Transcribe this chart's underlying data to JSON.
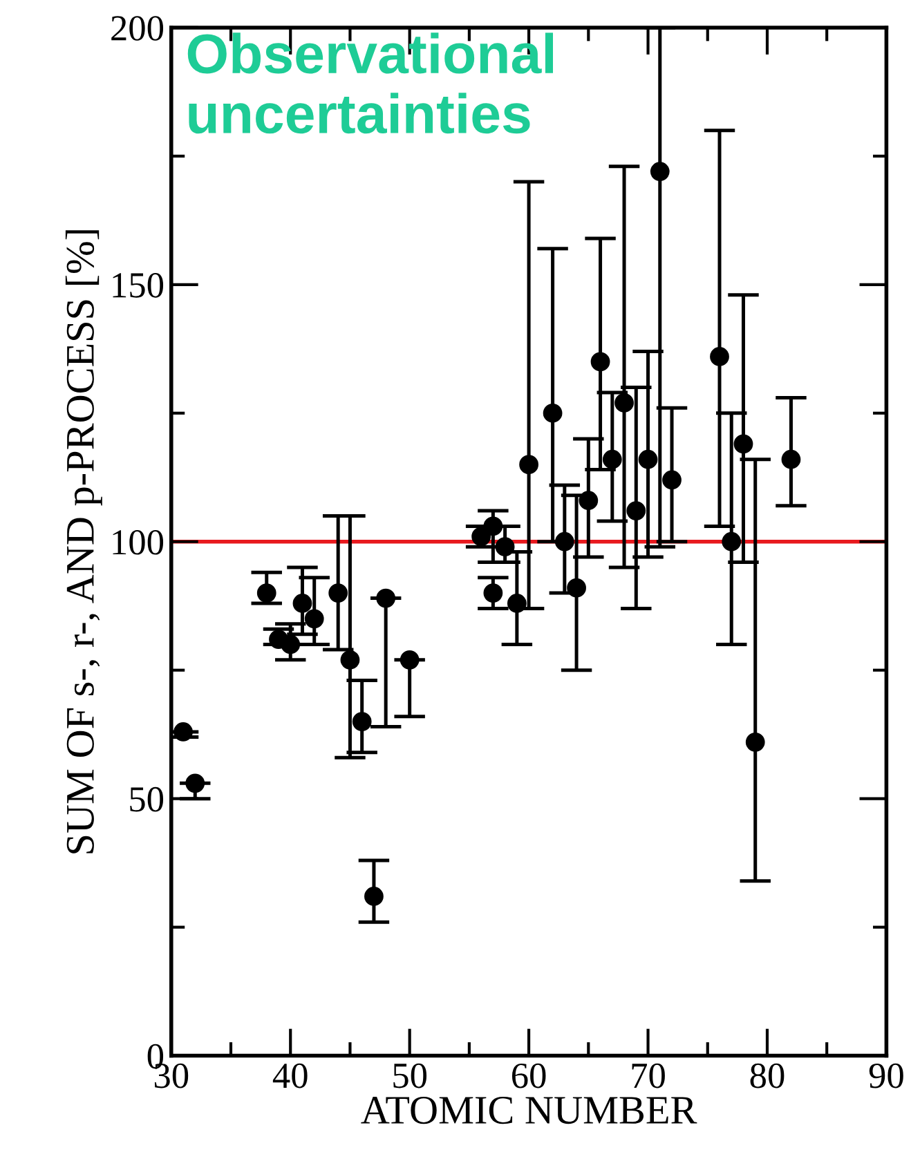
{
  "chart_data": {
    "type": "scatter",
    "xlabel": "ATOMIC NUMBER",
    "ylabel": "SUM OF s-, r-, AND p-PROCESS [%]",
    "annotations": [
      "Observational uncertainties"
    ],
    "x": [
      31,
      32,
      38,
      39,
      40,
      41,
      42,
      44,
      45,
      46,
      47,
      48,
      50,
      56,
      57,
      57,
      58,
      59,
      60,
      62,
      63,
      64,
      65,
      66,
      67,
      68,
      69,
      70,
      71,
      72,
      76,
      77,
      78,
      79,
      82
    ],
    "series": [
      {
        "color": "#000000",
        "values": [
          63,
          53,
          90,
          81,
          80,
          88,
          85,
          90,
          77,
          65,
          31,
          89,
          77,
          101,
          103,
          90,
          99,
          88,
          115,
          125,
          100,
          91,
          108,
          135,
          116,
          127,
          106,
          116,
          172,
          112,
          136,
          100,
          119,
          61,
          116
        ],
        "errors": [
          [
            62,
            63
          ],
          [
            50,
            53
          ],
          [
            88,
            94
          ],
          [
            80,
            83
          ],
          [
            77,
            84
          ],
          [
            82,
            95
          ],
          [
            80,
            93
          ],
          [
            79,
            105
          ],
          [
            58,
            105
          ],
          [
            59,
            73
          ],
          [
            26,
            38
          ],
          [
            64,
            89
          ],
          [
            66,
            77
          ],
          [
            99,
            103
          ],
          [
            96,
            106
          ],
          [
            87,
            93
          ],
          [
            96,
            103
          ],
          [
            80,
            98
          ],
          [
            87,
            170
          ],
          [
            100,
            157
          ],
          [
            90,
            111
          ],
          [
            75,
            109
          ],
          [
            97,
            120
          ],
          [
            114,
            159
          ],
          [
            104,
            129
          ],
          [
            95,
            173
          ],
          [
            87,
            130
          ],
          [
            97,
            137
          ],
          [
            99,
            200
          ],
          [
            100,
            126
          ],
          [
            103,
            180
          ],
          [
            80,
            125
          ],
          [
            96,
            148
          ],
          [
            34,
            116
          ],
          [
            107,
            128
          ]
        ]
      }
    ],
    "xlim": [
      30,
      90
    ],
    "xticks": [
      30,
      40,
      50,
      60,
      70,
      80,
      90
    ],
    "ylim": [
      0,
      200
    ],
    "yticks": [
      0,
      50,
      100,
      150,
      200
    ],
    "ref_lines": [
      {
        "axis": "y",
        "value": 100,
        "color": "#e8191e"
      }
    ],
    "marker": "circle",
    "grid": false
  }
}
